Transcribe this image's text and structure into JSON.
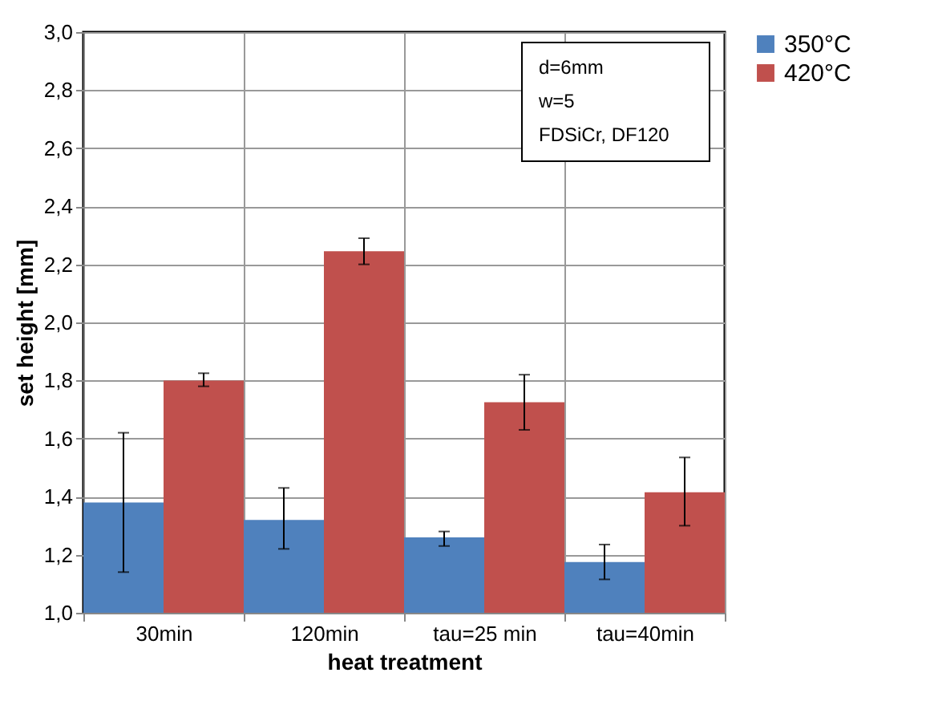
{
  "chart_data": {
    "type": "bar",
    "categories": [
      "30min",
      "120min",
      "tau=25 min",
      "tau=40min"
    ],
    "series": [
      {
        "name": "350°C",
        "color": "#4f81bd",
        "values": [
          1.38,
          1.32,
          1.26,
          1.175
        ],
        "errors": [
          [
            1.14,
            1.62
          ],
          [
            1.22,
            1.43
          ],
          [
            1.23,
            1.28
          ],
          [
            1.115,
            1.235
          ]
        ]
      },
      {
        "name": "420°C",
        "color": "#c0504d",
        "values": [
          1.8,
          2.245,
          1.725,
          1.415
        ],
        "errors": [
          [
            1.78,
            1.825
          ],
          [
            2.2,
            2.29
          ],
          [
            1.63,
            1.82
          ],
          [
            1.3,
            1.535
          ]
        ]
      }
    ],
    "xlabel": "heat treatment",
    "ylabel": "set height [mm]",
    "ylim": [
      1.0,
      3.0
    ],
    "yticks": [
      {
        "value": 1.0,
        "label": "1,0"
      },
      {
        "value": 1.2,
        "label": "1,2"
      },
      {
        "value": 1.4,
        "label": "1,4"
      },
      {
        "value": 1.6,
        "label": "1,6"
      },
      {
        "value": 1.8,
        "label": "1,8"
      },
      {
        "value": 2.0,
        "label": "2,0"
      },
      {
        "value": 2.2,
        "label": "2,2"
      },
      {
        "value": 2.4,
        "label": "2,4"
      },
      {
        "value": 2.6,
        "label": "2,6"
      },
      {
        "value": 2.8,
        "label": "2,8"
      },
      {
        "value": 3.0,
        "label": "3,0"
      }
    ],
    "annotations": [
      "d=6mm",
      "w=5",
      "FDSiCr, DF120"
    ],
    "grid": true,
    "legend": "right"
  }
}
